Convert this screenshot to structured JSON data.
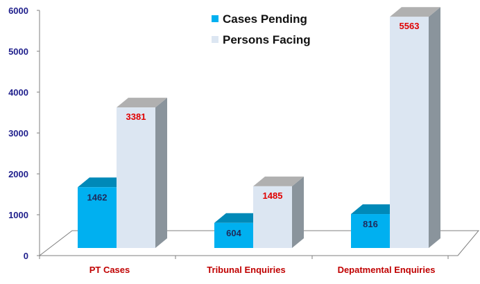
{
  "chart_data": {
    "type": "bar",
    "categories": [
      "PT Cases",
      "Tribunal Enquiries",
      "Depatmental Enquiries"
    ],
    "series": [
      {
        "name": "Cases Pending",
        "values": [
          1462,
          604,
          816
        ]
      },
      {
        "name": "Persons Facing",
        "values": [
          3381,
          1485,
          5563
        ]
      }
    ],
    "ylim": [
      0,
      6000
    ],
    "yticks": [
      0,
      1000,
      2000,
      3000,
      4000,
      5000,
      6000
    ],
    "grid": false,
    "legend_position": "top-center",
    "style": "3d",
    "colors": {
      "Cases Pending": "#00b0f0",
      "Cases Pending Top": "#0089b8",
      "Persons Facing": "#dce6f2",
      "Persons Facing Top": "#b0b0b0",
      "Side": "#8a949c",
      "Category Label": "#c00000",
      "Axis Label": "#1f1f8c",
      "Pending Label": "#1f2a5a",
      "Persons Label": "#e00000"
    }
  }
}
